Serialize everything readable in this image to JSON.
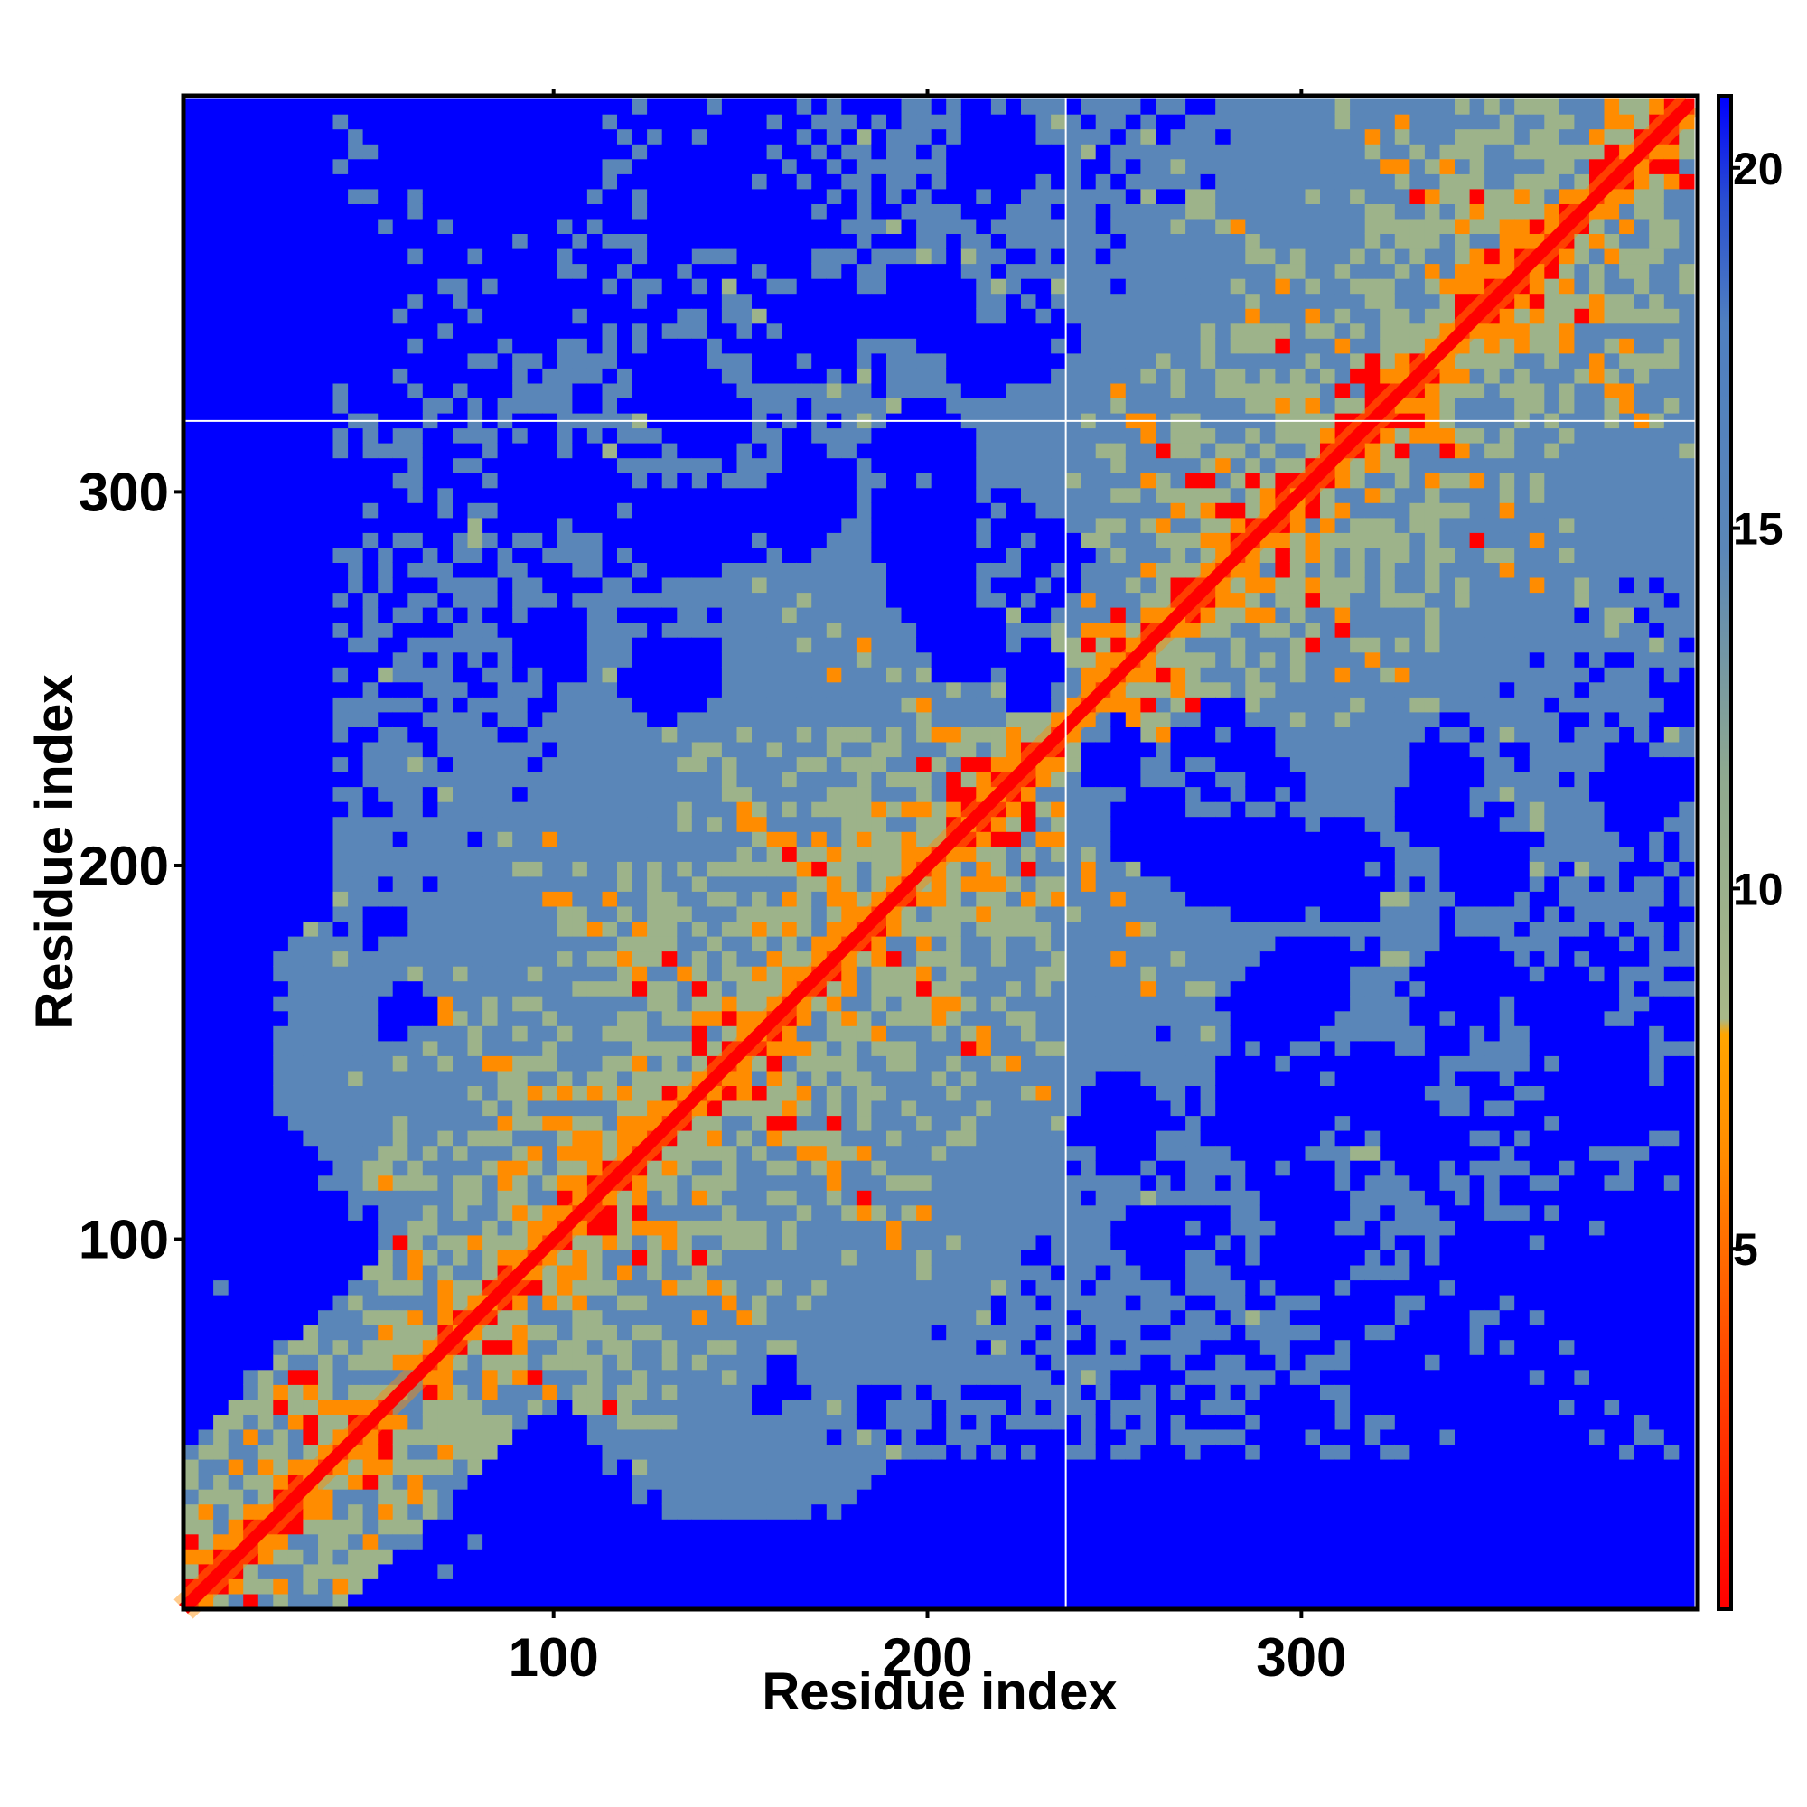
{
  "chart_data": {
    "type": "heatmap",
    "title": "",
    "xlabel": "Residue index",
    "ylabel": "Residue index",
    "n_residues": 404,
    "xlim": [
      1,
      406
    ],
    "ylim": [
      1,
      406
    ],
    "x_ticks": [
      100,
      200,
      300
    ],
    "y_ticks": [
      100,
      200,
      300
    ],
    "colorbar": {
      "ticks": [
        5,
        10,
        15,
        20
      ],
      "range": [
        0,
        21
      ],
      "colors": {
        "contact": "#ff0000",
        "close": "#ff8c00",
        "medium": "#9db38a",
        "far": "#5a86b8",
        "very_far": "#0000ff"
      }
    },
    "chain_break_residues": [
      237,
      319
    ],
    "colors": {
      "background": "#ffffff",
      "grid_break": "#ffffff",
      "frame": "#000000"
    }
  }
}
